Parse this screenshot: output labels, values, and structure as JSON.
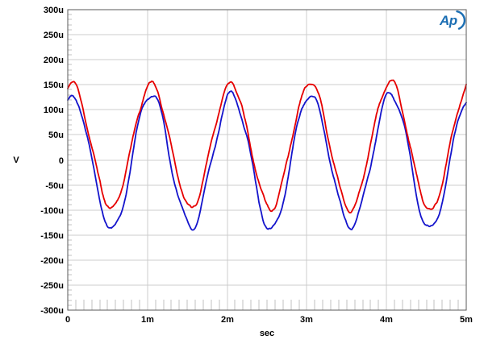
{
  "logo": {
    "text": "Ap",
    "color": "#1b6eb3"
  },
  "chart_data": {
    "type": "line",
    "title": "",
    "xlabel": "sec",
    "ylabel": "V",
    "x_unit": "ms",
    "y_unit": "uV",
    "xlim_ms": [
      0,
      5
    ],
    "ylim_uV": [
      -300,
      300
    ],
    "x_ticks_ms": [
      0,
      1,
      2,
      3,
      4,
      5
    ],
    "x_tick_labels": [
      "0",
      "1m",
      "2m",
      "3m",
      "4m",
      "5m"
    ],
    "x_minor_step_ms": 0.1,
    "y_ticks_uV": [
      300,
      250,
      200,
      150,
      100,
      50,
      0,
      -50,
      -100,
      -150,
      -200,
      -250,
      -300
    ],
    "y_tick_labels": [
      "300u",
      "250u",
      "200u",
      "150u",
      "100u",
      "50u",
      "0",
      "-50u",
      "-100u",
      "-150u",
      "-200u",
      "-250u",
      "-300u"
    ],
    "y_minor_step_uV": 10,
    "grid": {
      "grid_color": "#cccccc",
      "tick_color": "#c2c2c2",
      "spine_color": "#5a5a5a",
      "background": "#ffffff"
    },
    "legend": null,
    "series": [
      {
        "name": "red-trace",
        "color": "#e60000",
        "period_ms": 1,
        "peak_time_offset_ms": 0.05,
        "offset_uV": 28,
        "amplitude_uV": 126,
        "noise_uV": 7,
        "jitter_uV": 2.5,
        "start_uV": 148,
        "end_uV": 148,
        "cycle_peak_times_ms": [
          0.05,
          1.05,
          2.05,
          3.05,
          4.05
        ],
        "cycle_peaks_uV": [
          153,
          158,
          152,
          162,
          155
        ],
        "cycle_trough_times_ms": [
          0.55,
          1.55,
          2.55,
          3.55,
          4.55
        ],
        "cycle_troughs_uV": [
          -95,
          -97,
          -105,
          -95,
          -105
        ]
      },
      {
        "name": "blue-trace",
        "color": "#1414cc",
        "period_ms": 1,
        "peak_time_offset_ms": 0.05,
        "offset_uV": -3,
        "amplitude_uV": 133,
        "noise_uV": 7,
        "jitter_uV": 2.5,
        "start_uV": 124,
        "end_uV": 118,
        "cycle_peak_times_ms": [
          0.05,
          1.05,
          2.05,
          3.05,
          4.05
        ],
        "cycle_peaks_uV": [
          130,
          138,
          133,
          134,
          131
        ],
        "cycle_trough_times_ms": [
          0.55,
          1.55,
          2.55,
          3.55,
          4.55
        ],
        "cycle_troughs_uV": [
          -136,
          -142,
          -130,
          -136,
          -128
        ]
      }
    ]
  }
}
